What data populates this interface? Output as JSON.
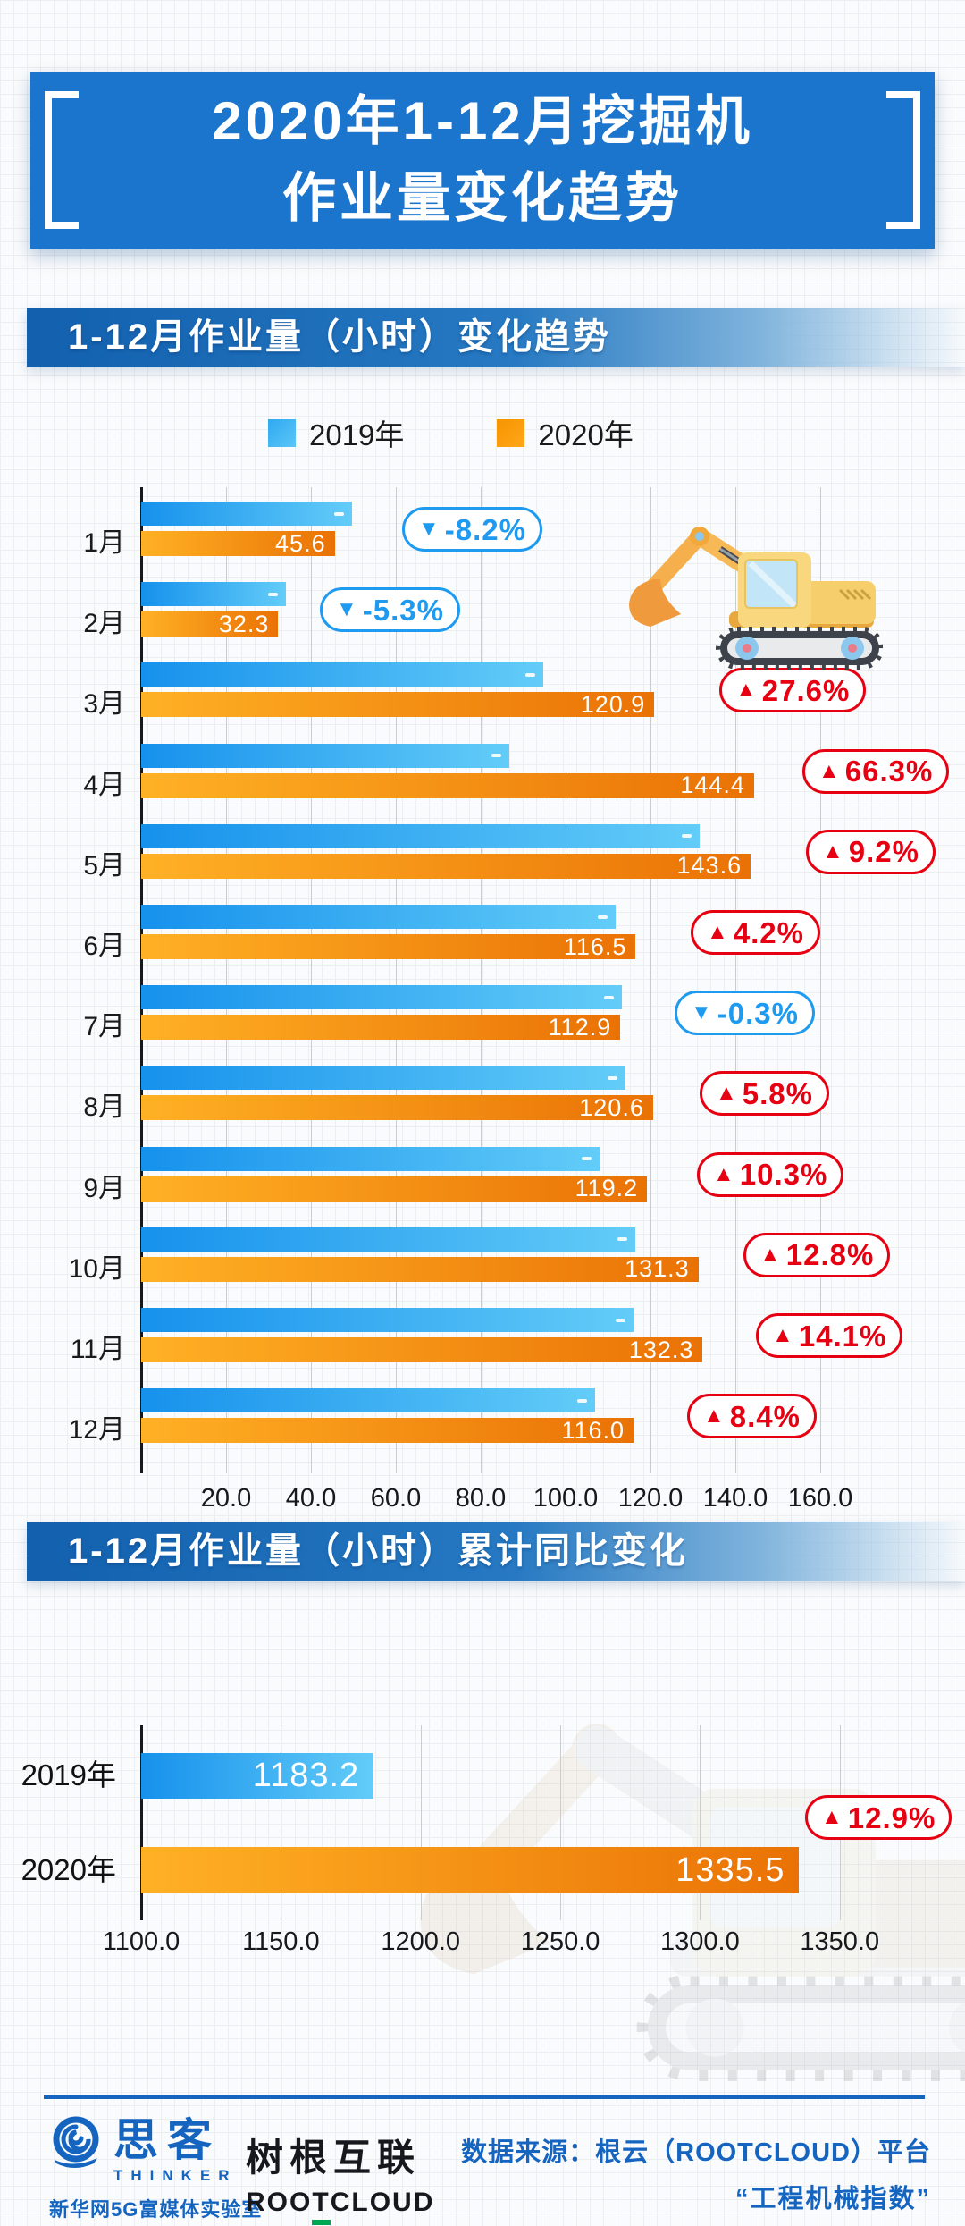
{
  "banner": {
    "title_line1": "2020年1-12月挖掘机",
    "title_line2": "作业量变化趋势"
  },
  "sections": [
    {
      "header": "1-12月作业量（小时）变化趋势"
    },
    {
      "header": "1-12月作业量（小时）累计同比变化"
    }
  ],
  "legend": {
    "items": [
      {
        "label": "2019年",
        "color": "#2FA9F0"
      },
      {
        "label": "2020年",
        "color": "#F79400"
      }
    ]
  },
  "chart_data": [
    {
      "type": "bar",
      "orientation": "horizontal",
      "title": "1-12月作业量（小时）变化趋势",
      "categories": [
        "1月",
        "2月",
        "3月",
        "4月",
        "5月",
        "6月",
        "7月",
        "8月",
        "9月",
        "10月",
        "11月",
        "12月"
      ],
      "series": [
        {
          "name": "2019年",
          "labels_shown": false,
          "values": [
            49.7,
            34.1,
            94.7,
            86.8,
            131.5,
            111.8,
            113.2,
            114.0,
            108.1,
            116.4,
            116.0,
            107.0
          ]
        },
        {
          "name": "2020年",
          "labels_shown": true,
          "values": [
            45.6,
            32.3,
            120.9,
            144.4,
            143.6,
            116.5,
            112.9,
            120.6,
            119.2,
            131.3,
            132.3,
            116.0
          ]
        }
      ],
      "yoy_badges": [
        {
          "text": "-8.2%",
          "dir": "down"
        },
        {
          "text": "-5.3%",
          "dir": "down"
        },
        {
          "text": "27.6%",
          "dir": "up"
        },
        {
          "text": "66.3%",
          "dir": "up"
        },
        {
          "text": "9.2%",
          "dir": "up"
        },
        {
          "text": "4.2%",
          "dir": "up"
        },
        {
          "text": "-0.3%",
          "dir": "down"
        },
        {
          "text": "5.8%",
          "dir": "up"
        },
        {
          "text": "10.3%",
          "dir": "up"
        },
        {
          "text": "12.8%",
          "dir": "up"
        },
        {
          "text": "14.1%",
          "dir": "up"
        },
        {
          "text": "8.4%",
          "dir": "up"
        }
      ],
      "x_ticks": [
        "20.0",
        "40.0",
        "60.0",
        "80.0",
        "100.0",
        "120.0",
        "140.0",
        "160.0"
      ],
      "xlim": [
        0,
        173
      ],
      "grid": true,
      "legend_position": "top"
    },
    {
      "type": "bar",
      "orientation": "horizontal",
      "title": "1-12月作业量（小时）累计同比变化",
      "categories": [
        "2019年",
        "2020年"
      ],
      "values": [
        1183.2,
        1335.5
      ],
      "yoy_badge": {
        "text": "12.9%",
        "dir": "up"
      },
      "x_ticks": [
        "1100.0",
        "1150.0",
        "1200.0",
        "1250.0",
        "1300.0",
        "1350.0"
      ],
      "xlim": [
        1100,
        1395
      ],
      "grid": true
    }
  ],
  "colors": {
    "banner_blue": "#1C75CC",
    "header_gradient_left": "#1260AE",
    "badge_up": "#E60012",
    "badge_down": "#1E9AF0",
    "bar_2019_start": "#1691EC",
    "bar_2019_end": "#63CCF8",
    "bar_2020_start": "#FFB125",
    "bar_2020_end": "#EA7205",
    "footer_blue": "#1565C0",
    "rootcloud_green": "#00A650"
  },
  "footer": {
    "thinker": {
      "name": "思客",
      "sub": "THINKER",
      "org": "新华网5G富媒体实验室"
    },
    "rootcloud": {
      "name": "树根互联",
      "sub": "ROOTCLOUD"
    },
    "source_line1": "数据来源：根云（ROOTCLOUD）平台",
    "source_line2": "“工程机械指数”"
  }
}
